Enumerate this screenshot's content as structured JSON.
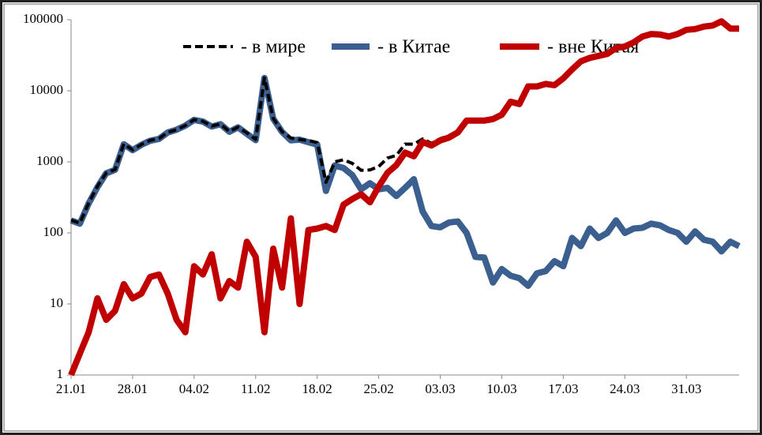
{
  "chart_data": {
    "type": "line",
    "y_scale": "log",
    "legend": "top",
    "categories": [
      "21.01",
      null,
      null,
      null,
      null,
      null,
      null,
      "28.01",
      null,
      null,
      null,
      null,
      null,
      null,
      "04.02",
      null,
      null,
      null,
      null,
      null,
      null,
      "11.02",
      null,
      null,
      null,
      null,
      null,
      null,
      "18.02",
      null,
      null,
      null,
      null,
      null,
      null,
      "25.02",
      null,
      null,
      null,
      null,
      null,
      null,
      "03.03",
      null,
      null,
      null,
      null,
      null,
      null,
      "10.03",
      null,
      null,
      null,
      null,
      null,
      null,
      "17.03",
      null,
      null,
      null,
      null,
      null,
      null,
      "24.03",
      null,
      null,
      null,
      null,
      null,
      null,
      "31.03",
      null,
      null,
      null,
      null,
      null,
      null
    ],
    "ylim": [
      1,
      100000
    ],
    "yticks": [
      1,
      10,
      100,
      1000,
      10000,
      100000
    ],
    "series": [
      {
        "name": "-  в Китае",
        "color": "#3b5f8e",
        "dash": false,
        "values": [
          150,
          135,
          260,
          440,
          690,
          770,
          1770,
          1460,
          1740,
          1980,
          2100,
          2590,
          2830,
          3240,
          3890,
          3690,
          3140,
          3390,
          2650,
          3060,
          2480,
          2020,
          15150,
          4050,
          2640,
          2010,
          2050,
          1890,
          1750,
          390,
          890,
          820,
          650,
          410,
          500,
          410,
          430,
          330,
          430,
          570,
          200,
          125,
          120,
          140,
          145,
          100,
          46,
          45,
          20,
          31,
          25,
          23,
          18,
          27,
          29,
          40,
          34,
          85,
          65,
          115,
          85,
          100,
          150,
          100,
          115,
          118,
          135,
          128,
          110,
          100,
          75,
          105,
          80,
          75,
          55,
          75,
          65
        ]
      },
      {
        "name": "- в мире",
        "color": "#000000",
        "dash": true,
        "values": [
          151,
          137,
          264,
          452,
          696,
          778,
          1789,
          1472,
          1754,
          2004,
          2126,
          2604,
          2836,
          3244,
          3924,
          3716,
          3190,
          3402,
          2671,
          3077,
          2555,
          2066,
          15154,
          4110,
          2657,
          2170,
          2060,
          2000,
          1865,
          515,
          1000,
          1070,
          950,
          760,
          770,
          860,
          1130,
          1230,
          1780,
          1770,
          2100,
          1825,
          2120,
          2340,
          2745,
          3900,
          3846,
          3845,
          4020,
          4631,
          7025,
          6523,
          11523,
          11518,
          12527,
          12029,
          15034,
          20085,
          26065,
          29115,
          31085,
          33100,
          40150,
          42100,
          48115,
          58118,
          63135,
          62128,
          58110,
          63100,
          72075,
          74105,
          80080,
          83075,
          95055,
          75075,
          75065
        ]
      },
      {
        "name": "- вне Китая",
        "color": "#c00000",
        "dash": false,
        "values": [
          1,
          2,
          4,
          12,
          6,
          8,
          19,
          12,
          14,
          24,
          26,
          14,
          6,
          4,
          34,
          26,
          50,
          12,
          21,
          17,
          75,
          46,
          4,
          60,
          17,
          160,
          10,
          110,
          115,
          125,
          110,
          250,
          300,
          350,
          270,
          450,
          700,
          900,
          1350,
          1200,
          1900,
          1700,
          2000,
          2200,
          2600,
          3800,
          3800,
          3800,
          4000,
          4600,
          7000,
          6500,
          11500,
          11500,
          12500,
          12000,
          15000,
          20000,
          26000,
          29000,
          31000,
          33000,
          40000,
          42000,
          48000,
          58000,
          63000,
          62000,
          58000,
          63000,
          72000,
          74000,
          80000,
          83000,
          95000,
          75000,
          75000
        ]
      }
    ]
  }
}
